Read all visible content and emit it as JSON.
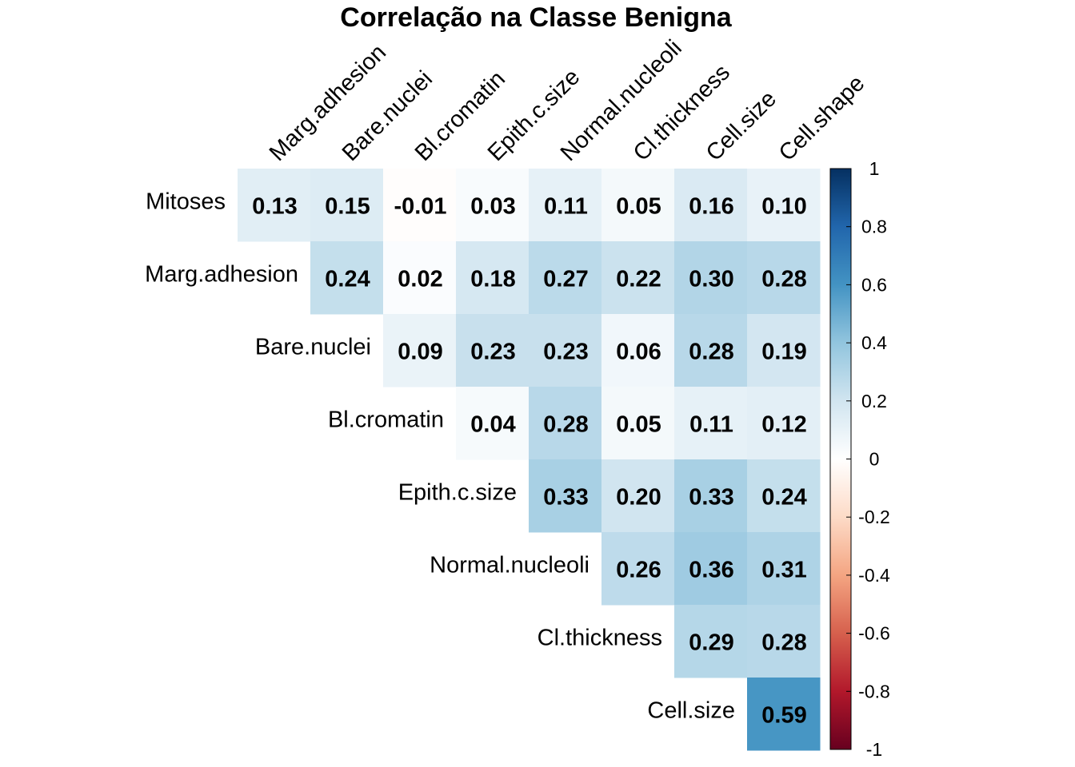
{
  "chart_data": {
    "type": "heatmap",
    "title": "Correlação na Classe Benigna",
    "columns": [
      "Marg.adhesion",
      "Bare.nuclei",
      "Bl.cromatin",
      "Epith.c.size",
      "Normal.nucleoli",
      "Cl.thickness",
      "Cell.size",
      "Cell.shape"
    ],
    "rows": [
      {
        "label": "Mitoses",
        "start": 0,
        "values": [
          0.13,
          0.15,
          -0.01,
          0.03,
          0.11,
          0.05,
          0.16,
          0.1
        ]
      },
      {
        "label": "Marg.adhesion",
        "start": 1,
        "values": [
          0.24,
          0.02,
          0.18,
          0.27,
          0.22,
          0.3,
          0.28
        ]
      },
      {
        "label": "Bare.nuclei",
        "start": 2,
        "values": [
          0.09,
          0.23,
          0.23,
          0.06,
          0.28,
          0.19
        ]
      },
      {
        "label": "Bl.cromatin",
        "start": 3,
        "values": [
          0.04,
          0.28,
          0.05,
          0.11,
          0.12
        ]
      },
      {
        "label": "Epith.c.size",
        "start": 4,
        "values": [
          0.33,
          0.2,
          0.33,
          0.24
        ]
      },
      {
        "label": "Normal.nucleoli",
        "start": 5,
        "values": [
          0.26,
          0.36,
          0.31
        ]
      },
      {
        "label": "Cl.thickness",
        "start": 6,
        "values": [
          0.29,
          0.28
        ]
      },
      {
        "label": "Cell.size",
        "start": 7,
        "values": [
          0.59
        ]
      }
    ],
    "colorbar": {
      "range": [
        -1,
        1
      ],
      "ticks": [
        "1",
        "0.8",
        "0.6",
        "0.4",
        "0.2",
        "0",
        "-0.2",
        "-0.4",
        "-0.6",
        "-0.8",
        "-1"
      ],
      "colors": [
        "#67001F",
        "#B2182B",
        "#D6604D",
        "#F4A582",
        "#FDDBC7",
        "#FFFFFF",
        "#D1E5F0",
        "#92C5DE",
        "#4393C3",
        "#2166AC",
        "#053061"
      ]
    },
    "cell_text_format": "2 decimals"
  }
}
